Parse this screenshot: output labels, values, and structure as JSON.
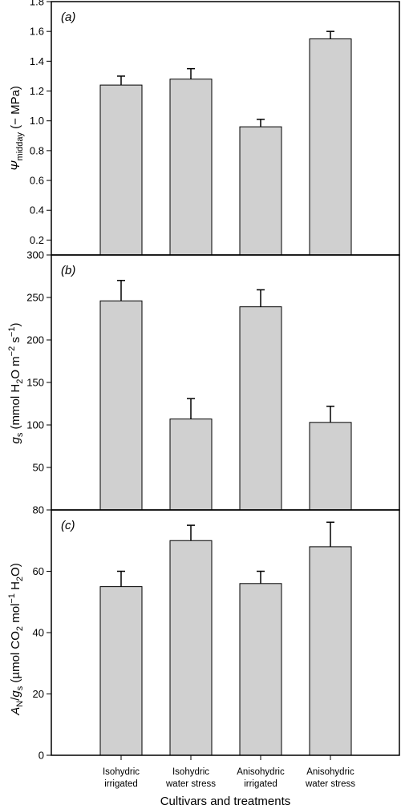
{
  "chart_data": [
    {
      "type": "bar",
      "panel_label": "(a)",
      "ylabel": "Ψmidday (− MPa)",
      "ylabel_parts": {
        "symbol": "Ψ",
        "sub": "midday",
        "rest": " (− MPa)"
      },
      "ylim": [
        0.1,
        1.8
      ],
      "yticks": [
        "0.2",
        "0.4",
        "0.6",
        "0.8",
        "1.0",
        "1.2",
        "1.4",
        "1.6",
        "1.8"
      ],
      "categories": [
        "Isohydric irrigated",
        "Isohydric water stress",
        "Anisohydric irrigated",
        "Anisohydric water stress"
      ],
      "values": [
        1.24,
        1.28,
        0.96,
        1.55
      ],
      "errors": [
        0.06,
        0.07,
        0.05,
        0.05
      ],
      "bar_color": "#d0d0d0",
      "grid": false
    },
    {
      "type": "bar",
      "panel_label": "(b)",
      "ylabel": "gs (mmol H2O m−2 s−1)",
      "ylabel_parts": {
        "g": "g",
        "s": "s",
        "a": " (mmol H",
        "two": "2",
        "b": "O m",
        "e1": "−2",
        "c": " s",
        "e2": "−1",
        "d": ")"
      },
      "ylim": [
        0,
        300
      ],
      "yticks": [
        "50",
        "100",
        "150",
        "200",
        "250",
        "300"
      ],
      "categories": [
        "Isohydric irrigated",
        "Isohydric water stress",
        "Anisohydric irrigated",
        "Anisohydric water stress"
      ],
      "values": [
        246,
        107,
        239,
        103
      ],
      "errors": [
        24,
        24,
        20,
        19
      ],
      "bar_color": "#d0d0d0",
      "grid": false
    },
    {
      "type": "bar",
      "panel_label": "(c)",
      "ylabel": "AN/gs (µmol CO2 mol−1 H2O)",
      "ylabel_parts": {
        "A": "A",
        "N": "N",
        "slash": "/",
        "g": "g",
        "s": "s",
        "a": " (µmol CO",
        "two": "2",
        "b": " mol",
        "e": "−1",
        "c": " H",
        "two2": "2",
        "d": "O)"
      },
      "ylim": [
        0,
        80
      ],
      "yticks": [
        "0",
        "20",
        "40",
        "60",
        "80"
      ],
      "categories": [
        "Isohydric irrigated",
        "Isohydric water stress",
        "Anisohydric irrigated",
        "Anisohydric water stress"
      ],
      "values": [
        55,
        70,
        56,
        68
      ],
      "errors": [
        5,
        5,
        4,
        8
      ],
      "bar_color": "#d0d0d0",
      "grid": false
    }
  ],
  "x_category_lines": [
    [
      "Isohydric",
      "irrigated"
    ],
    [
      "Isohydric",
      "water stress"
    ],
    [
      "Anisohydric",
      "irrigated"
    ],
    [
      "Anisohydric",
      "water stress"
    ]
  ],
  "xlabel": "Cultivars and treatments"
}
